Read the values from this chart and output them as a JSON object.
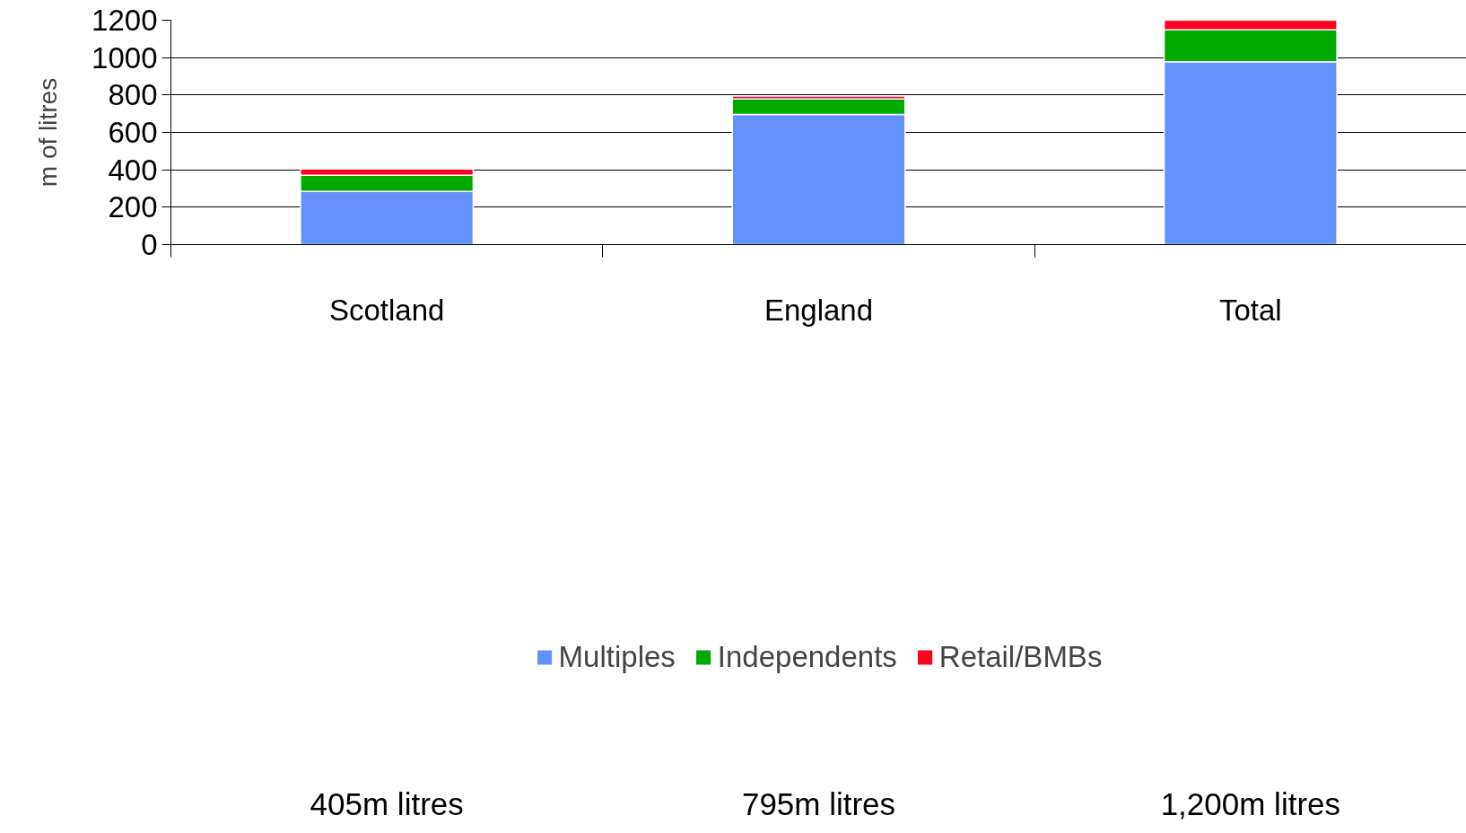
{
  "chart_data": {
    "type": "bar",
    "stacked": true,
    "ylabel": "m of litres",
    "categories": [
      "Scotland",
      "England",
      "Total"
    ],
    "series": [
      {
        "name": "Multiples",
        "color": "#6490fa",
        "values": [
          284,
          696,
          978
        ]
      },
      {
        "name": "Independents",
        "color": "#00aa00",
        "values": [
          87,
          83,
          170
        ]
      },
      {
        "name": "Retail/BMBs",
        "color": "#ff0022",
        "values": [
          34,
          16,
          52
        ]
      }
    ],
    "ylim": [
      0,
      1200
    ],
    "yticks": [
      0,
      200,
      400,
      600,
      800,
      1000,
      1200
    ],
    "grid": "y",
    "legend": "bottom",
    "annotations": [
      "405m litres",
      "795m litres",
      "1,200m litres"
    ]
  }
}
